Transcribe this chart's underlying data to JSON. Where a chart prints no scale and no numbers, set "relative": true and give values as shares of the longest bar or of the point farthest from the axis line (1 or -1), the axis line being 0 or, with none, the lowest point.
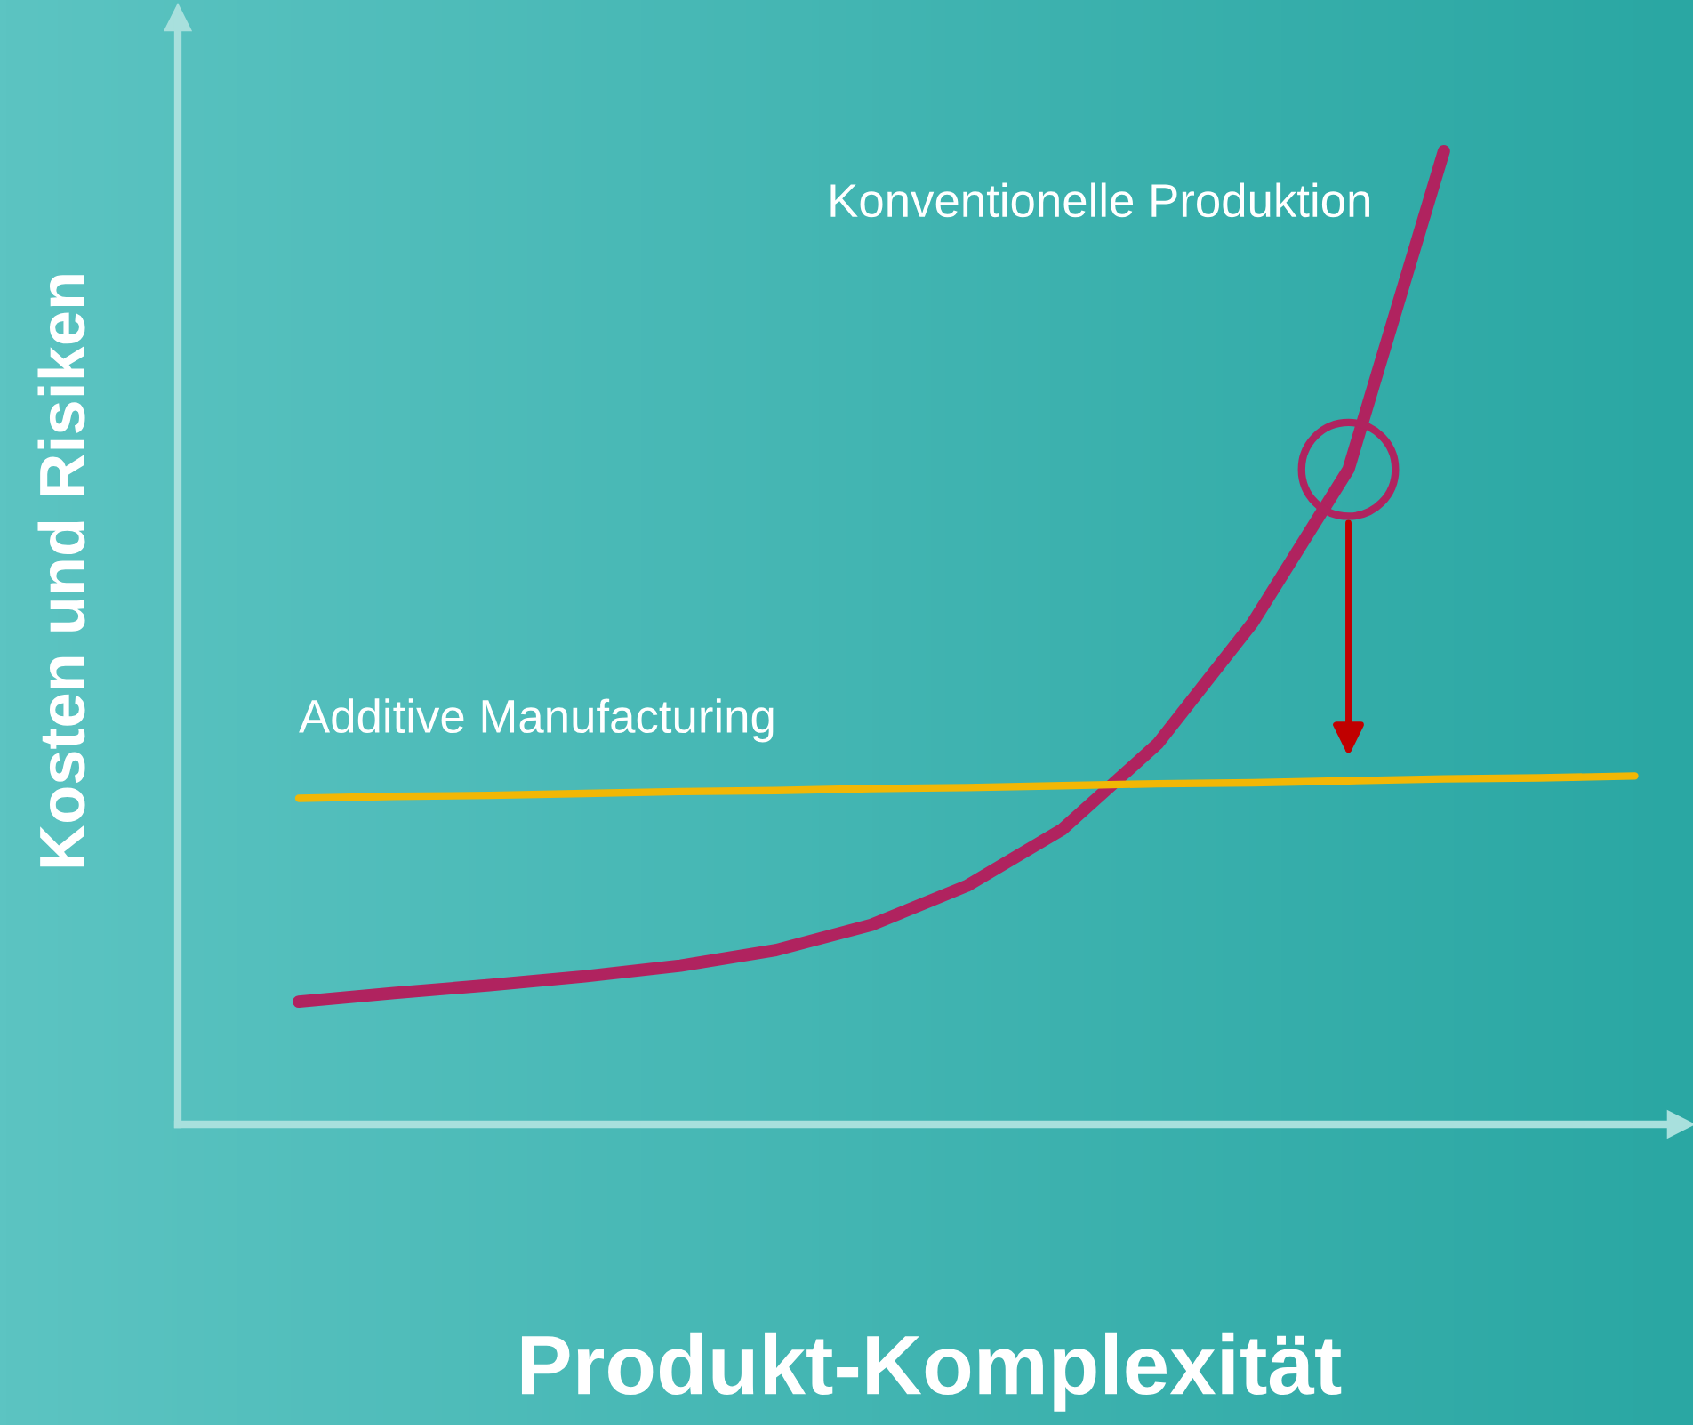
{
  "chart_data": {
    "type": "line",
    "relative": true,
    "xlabel": "Produkt-Komplexität",
    "ylabel": "Kosten und Risiken",
    "marker": "none",
    "line_style": "solid",
    "categories": [
      null,
      null,
      null,
      null,
      null,
      null,
      null,
      null,
      null,
      null,
      null,
      null,
      null,
      null,
      null
    ],
    "series": [
      {
        "name": "Konventionelle Produktion",
        "color": "#b0235f",
        "values": [
          0.126,
          0.135,
          0.143,
          0.152,
          0.163,
          0.179,
          0.205,
          0.245,
          0.303,
          0.391,
          0.516,
          0.673,
          1.0,
          null,
          null
        ]
      },
      {
        "name": "Additive Manufacturing",
        "color": "#f2b705",
        "values": [
          0.335,
          0.337,
          0.338,
          0.34,
          0.342,
          0.343,
          0.345,
          0.346,
          0.348,
          0.35,
          0.351,
          0.353,
          0.355,
          0.356,
          0.358
        ]
      }
    ]
  }
}
